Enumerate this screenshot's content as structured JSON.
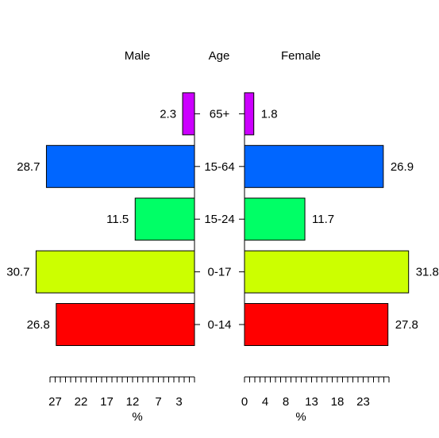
{
  "chart_data": {
    "type": "bar",
    "subtype": "population-pyramid",
    "headers": {
      "left": "Male",
      "center": "Age",
      "right": "Female"
    },
    "categories": [
      "0-14",
      "0-17",
      "15-24",
      "15-64",
      "65+"
    ],
    "series": [
      {
        "name": "Male",
        "values": [
          26.8,
          30.7,
          11.5,
          28.7,
          2.3
        ]
      },
      {
        "name": "Female",
        "values": [
          27.8,
          31.8,
          11.7,
          26.9,
          1.8
        ]
      }
    ],
    "value_labels": {
      "male": [
        "26.8",
        "30.7",
        "11.5",
        "28.7",
        "2.3"
      ],
      "female": [
        "27.8",
        "31.8",
        "11.7",
        "26.9",
        "1.8"
      ]
    },
    "bar_colors": [
      "#FF0000",
      "#CCFF00",
      "#00FF66",
      "#0066FF",
      "#CC00FF"
    ],
    "male_axis": {
      "tick_labels": [
        "27",
        "22",
        "17",
        "12",
        "7",
        "3"
      ],
      "tick_values": [
        27,
        22,
        17,
        12,
        7,
        3
      ],
      "minor_ticks_from": 0,
      "minor_ticks_to": 28,
      "label": "%"
    },
    "female_axis": {
      "tick_labels": [
        "0",
        "4",
        "8",
        "13",
        "18",
        "23"
      ],
      "tick_values": [
        0,
        4,
        8,
        13,
        18,
        23
      ],
      "minor_ticks_from": 0,
      "minor_ticks_to": 28,
      "label": "%"
    },
    "grid": false,
    "legend": "none"
  }
}
